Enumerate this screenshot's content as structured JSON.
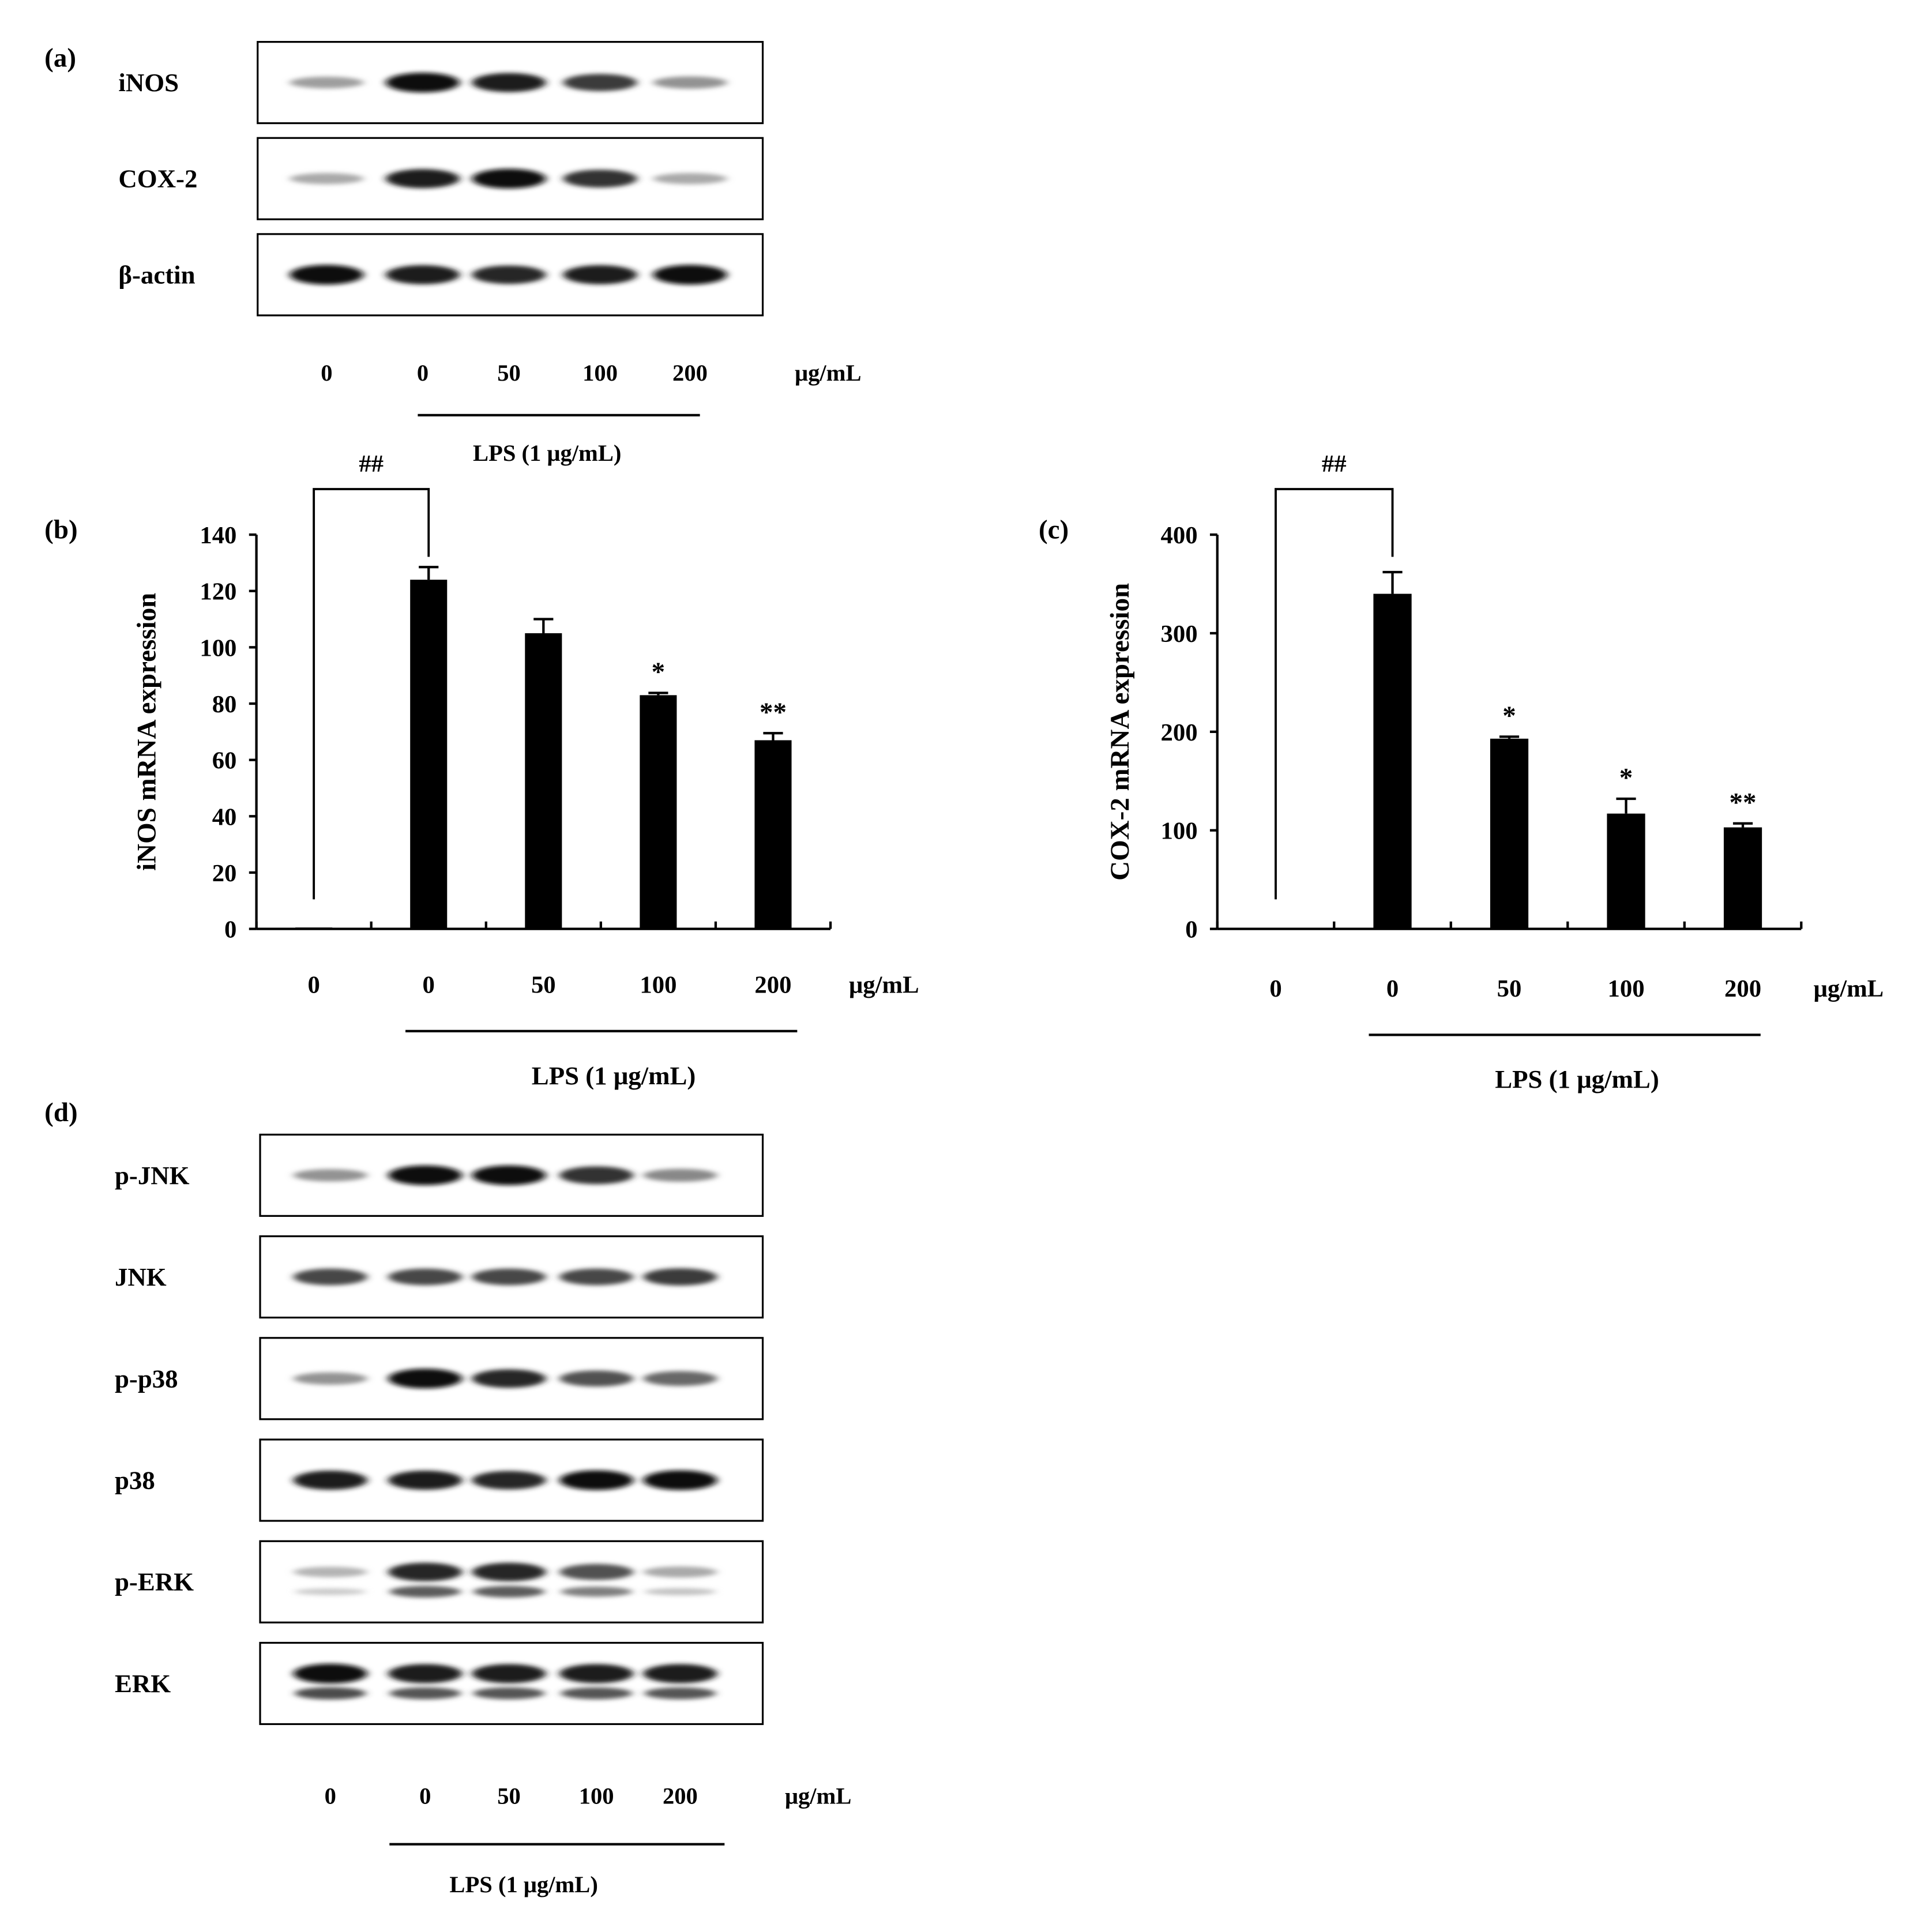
{
  "panel_a": {
    "label": "(a)",
    "blots": [
      {
        "name": "iNOS",
        "intensities": [
          0.35,
          1.0,
          0.95,
          0.8,
          0.4
        ],
        "doublet": false
      },
      {
        "name": "COX-2",
        "intensities": [
          0.3,
          0.95,
          1.0,
          0.85,
          0.3
        ],
        "doublet": false
      },
      {
        "name": "β-actin",
        "intensities": [
          1.0,
          0.95,
          0.9,
          0.95,
          1.0
        ],
        "doublet": false
      }
    ],
    "conc_labels": [
      "0",
      "0",
      "50",
      "100",
      "200"
    ],
    "unit": "μg/mL",
    "treatment": "LPS (1 μg/mL)"
  },
  "panel_d": {
    "label": "(d)",
    "blots": [
      {
        "name": "p-JNK",
        "intensities": [
          0.4,
          1.0,
          1.0,
          0.85,
          0.45
        ],
        "doublet": false
      },
      {
        "name": "JNK",
        "intensities": [
          0.75,
          0.75,
          0.75,
          0.75,
          0.8
        ],
        "doublet": false
      },
      {
        "name": "p-p38",
        "intensities": [
          0.4,
          1.0,
          0.9,
          0.7,
          0.6
        ],
        "doublet": false
      },
      {
        "name": "p38",
        "intensities": [
          0.95,
          0.95,
          0.9,
          1.0,
          1.0
        ],
        "doublet": false
      },
      {
        "name": "p-ERK",
        "intensities": [
          0.25,
          0.9,
          0.9,
          0.7,
          0.3
        ],
        "doublet": true
      },
      {
        "name": "ERK",
        "intensities": [
          1.0,
          0.95,
          0.95,
          0.95,
          0.95
        ],
        "doublet": true
      }
    ],
    "conc_labels": [
      "0",
      "0",
      "50",
      "100",
      "200"
    ],
    "unit": "μg/mL",
    "treatment": "LPS (1 μg/mL)"
  },
  "chart_data": [
    {
      "panel_label": "(b)",
      "type": "bar",
      "categories": [
        "0",
        "0",
        "50",
        "100",
        "200"
      ],
      "values": [
        0.5,
        124,
        105,
        83,
        67
      ],
      "errors": [
        0,
        4.5,
        5,
        0.8,
        2.5
      ],
      "annotations": [
        "",
        "",
        "",
        "*",
        "**"
      ],
      "bracket_label": "##",
      "ylabel": "iNOS mRNA expression",
      "ylim": [
        0,
        140
      ],
      "yticks": [
        0,
        20,
        40,
        60,
        80,
        100,
        120,
        140
      ],
      "unit": "μg/mL",
      "treatment": "LPS (1 μg/mL)",
      "bar_color": "#000000"
    },
    {
      "panel_label": "(c)",
      "type": "bar",
      "categories": [
        "0",
        "0",
        "50",
        "100",
        "200"
      ],
      "values": [
        0,
        340,
        193,
        117,
        103
      ],
      "errors": [
        0,
        22,
        2,
        15,
        4
      ],
      "annotations": [
        "",
        "",
        "*",
        "*",
        "**"
      ],
      "bracket_label": "##",
      "ylabel": "COX-2 mRNA expression",
      "ylim": [
        0,
        400
      ],
      "yticks": [
        0,
        100,
        200,
        300,
        400
      ],
      "unit": "μg/mL",
      "treatment": "LPS (1 μg/mL)",
      "bar_color": "#000000"
    }
  ]
}
